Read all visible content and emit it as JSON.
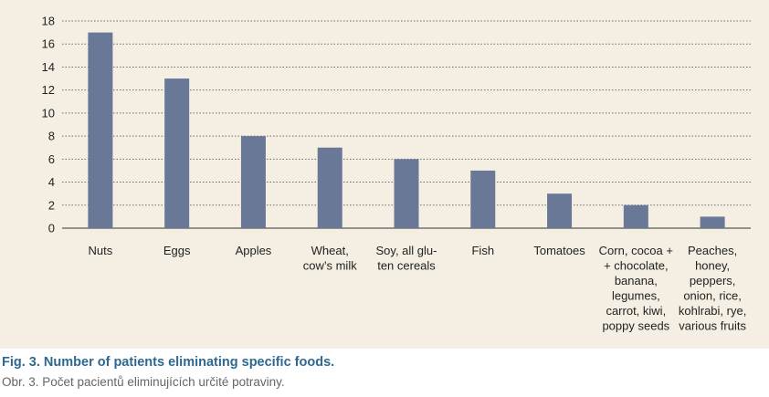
{
  "chart_data": {
    "type": "bar",
    "categories": [
      [
        "Nuts"
      ],
      [
        "Eggs"
      ],
      [
        "Apples"
      ],
      [
        "Wheat,",
        "cow’s milk"
      ],
      [
        "Soy, all glu-",
        "ten cereals"
      ],
      [
        "Fish"
      ],
      [
        "Tomatoes"
      ],
      [
        "Corn, cocoa +",
        "+ chocolate,",
        "banana,",
        "legumes,",
        "carrot, kiwi,",
        "poppy seeds"
      ],
      [
        "Peaches,",
        "honey,",
        "peppers,",
        "onion, rice,",
        "kohlrabi, rye,",
        "various fruits"
      ]
    ],
    "values": [
      17,
      13,
      8,
      7,
      6,
      5,
      3,
      2,
      1
    ],
    "ylim": [
      0,
      18
    ],
    "yticks": [
      0,
      2,
      4,
      6,
      8,
      10,
      12,
      14,
      16,
      18
    ],
    "grid": true,
    "bar_color": "#6a7898",
    "background_color": "#f4efe2"
  },
  "caption": {
    "title": "Fig. 3. Number of patients eliminating specific foods.",
    "subtitle": "Obr. 3. Počet pacientů eliminujících určité potraviny."
  }
}
